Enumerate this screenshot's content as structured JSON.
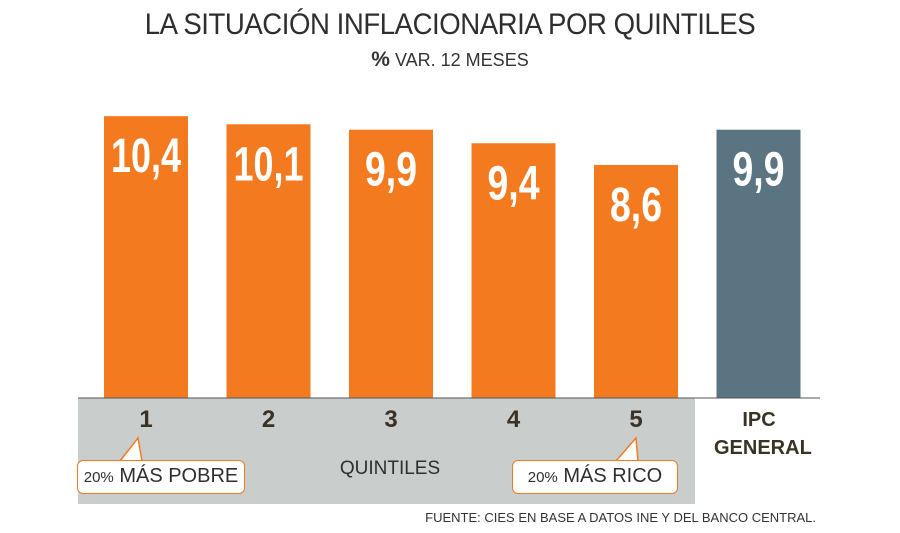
{
  "header": {
    "title": "LA SITUACIÓN INFLACIONARIA POR QUINTILES",
    "subtitle_symbol": "%",
    "subtitle_text": " VAR. 12 MESES"
  },
  "chart_data": {
    "type": "bar",
    "title": "LA SITUACIÓN INFLACIONARIA POR QUINTILES",
    "subtitle": "% VAR. 12 MESES",
    "xlabel": "QUINTILES",
    "ylabel": "",
    "categories": [
      "1",
      "2",
      "3",
      "4",
      "5",
      "IPC GENERAL"
    ],
    "values": [
      10.4,
      10.1,
      9.9,
      9.4,
      8.6,
      9.9
    ],
    "value_labels": [
      "10,4",
      "10,1",
      "9,9",
      "9,4",
      "8,6",
      "9,9"
    ],
    "colors": [
      "#f47a20",
      "#f47a20",
      "#f47a20",
      "#f47a20",
      "#f47a20",
      "#5a7482"
    ],
    "grid": false,
    "legend": "none"
  },
  "axis": {
    "quintile_title": "QUINTILES",
    "ipc_line1": "IPC",
    "ipc_line2": "GENERAL"
  },
  "callouts": {
    "poor_pct": "20%",
    "poor_text": " MÁS POBRE",
    "rich_pct": "20%",
    "rich_text": " MÁS RICO"
  },
  "source": "FUENTE: CIES EN BASE A DATOS INE Y DEL BANCO CENTRAL.",
  "colors": {
    "quintile_bar": "#f47a20",
    "ipc_bar": "#5a7482",
    "band": "#c9cecd",
    "baseline": "#555555"
  }
}
